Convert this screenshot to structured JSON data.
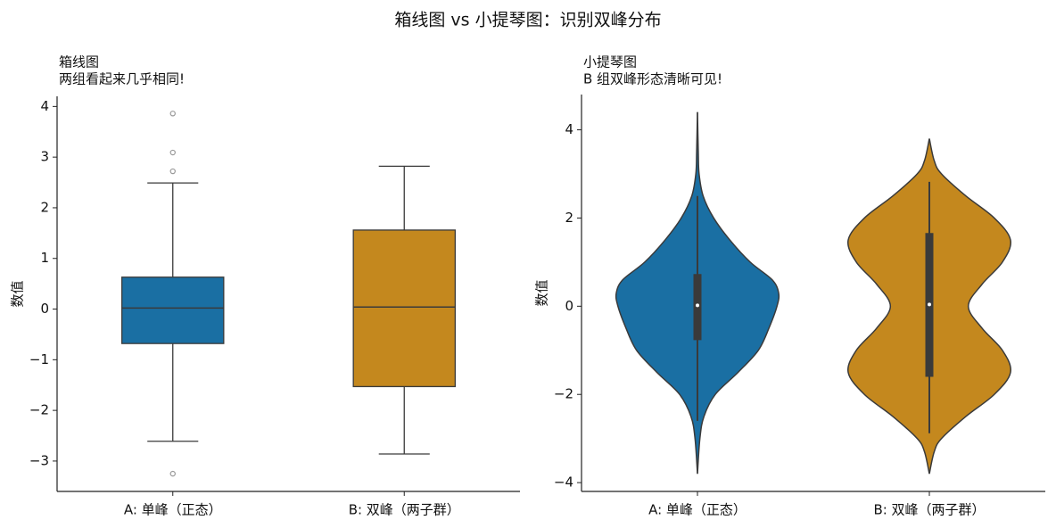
{
  "title": "箱线图 vs 小提琴图：识别双峰分布",
  "chart_data": [
    {
      "type": "box",
      "title": "箱线图",
      "subtitle": "两组看起来几乎相同!",
      "ylabel": "数值",
      "categories": [
        "A: 单峰（正态）",
        "B: 双峰（两子群）"
      ],
      "colors": [
        "#1a6fa3",
        "#c4881e"
      ],
      "boxes": [
        {
          "whisker_low": -2.61,
          "q1": -0.68,
          "median": 0.02,
          "q3": 0.63,
          "whisker_high": 2.49,
          "outliers": [
            3.86,
            3.09,
            2.72,
            -3.25
          ]
        },
        {
          "whisker_low": -2.86,
          "q1": -1.53,
          "median": 0.04,
          "q3": 1.56,
          "whisker_high": 2.82,
          "outliers": []
        }
      ],
      "ylim": [
        -3.6,
        4.2
      ],
      "yticks": [
        {
          "value": -3,
          "label": "−3"
        },
        {
          "value": -2,
          "label": "−2"
        },
        {
          "value": -1,
          "label": "−1"
        },
        0,
        1,
        2,
        3,
        4
      ]
    },
    {
      "type": "violin",
      "title": "小提琴图",
      "subtitle": "B 组双峰形态清晰可见!",
      "ylabel": "数值",
      "categories": [
        "A: 单峰（正态）",
        "B: 双峰（两子群）"
      ],
      "colors": [
        "#1a6fa3",
        "#c4881e"
      ],
      "violins": [
        {
          "whisker_low": -2.6,
          "q1": -0.77,
          "median": 0.02,
          "q3": 0.73,
          "whisker_high": 2.5,
          "density_y": [
            -3.8,
            -3,
            -2.5,
            -2,
            -1.5,
            -1,
            -0.5,
            0,
            0.3,
            0.6,
            1,
            1.5,
            2,
            2.5,
            3,
            3.5,
            4.4
          ],
          "density": [
            0,
            0.03,
            0.08,
            0.22,
            0.5,
            0.75,
            0.88,
            0.98,
            1,
            0.92,
            0.65,
            0.4,
            0.2,
            0.07,
            0.02,
            0.01,
            0
          ]
        },
        {
          "whisker_low": -2.88,
          "q1": -1.6,
          "median": 0.04,
          "q3": 1.66,
          "whisker_high": 2.82,
          "density_y": [
            -3.8,
            -3.3,
            -3,
            -2.5,
            -2,
            -1.5,
            -1,
            -0.5,
            0,
            0.5,
            1,
            1.5,
            2,
            2.5,
            3,
            3.3,
            3.8
          ],
          "density": [
            0,
            0.06,
            0.15,
            0.45,
            0.8,
            1,
            0.9,
            0.65,
            0.48,
            0.65,
            0.9,
            1,
            0.8,
            0.45,
            0.15,
            0.06,
            0
          ]
        }
      ],
      "ylim": [
        -4.2,
        4.8
      ],
      "yticks": [
        {
          "value": -4,
          "label": "−4"
        },
        {
          "value": -2,
          "label": "−2"
        },
        0,
        2,
        4
      ]
    }
  ]
}
